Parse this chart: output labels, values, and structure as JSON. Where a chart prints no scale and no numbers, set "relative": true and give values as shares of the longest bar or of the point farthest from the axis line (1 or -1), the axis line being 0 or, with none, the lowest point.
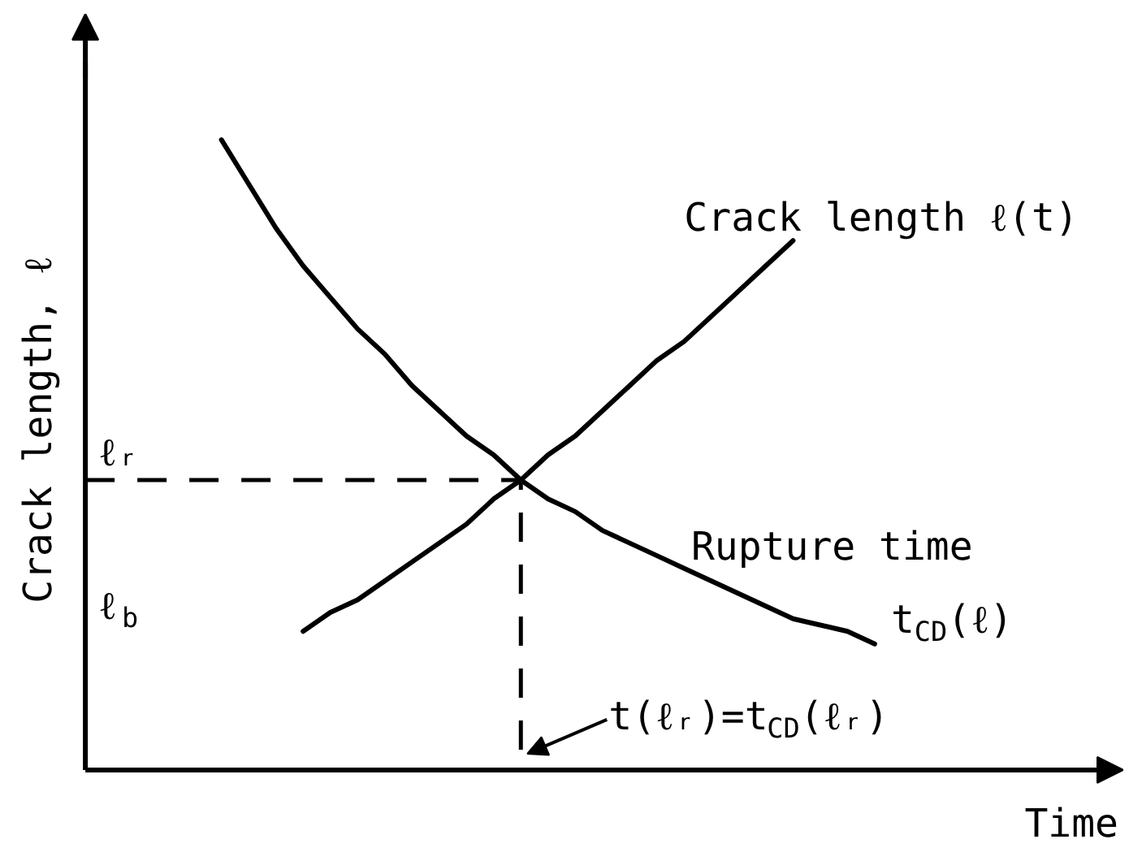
{
  "chart_data": {
    "type": "line",
    "relative": true,
    "xlabel": "Time",
    "ylabel": "Crack length, ℓ",
    "categories": [
      null,
      null,
      null,
      null,
      null,
      null,
      null,
      null,
      null,
      null,
      null,
      null,
      null,
      null,
      null,
      null,
      null,
      null,
      null,
      null,
      null,
      null,
      null,
      null,
      null,
      null,
      null,
      null,
      null,
      null
    ],
    "series": [
      {
        "name": "Crack length ℓ(t)",
        "color": "#000000",
        "values": [
          null,
          null,
          null,
          null,
          null,
          null,
          null,
          null,
          0.22,
          0.25,
          0.27,
          0.3,
          0.33,
          0.36,
          0.39,
          0.43,
          0.46,
          0.5,
          0.53,
          0.57,
          0.61,
          0.65,
          0.68,
          0.72,
          0.76,
          0.8,
          0.84,
          null,
          null,
          null
        ]
      },
      {
        "name": "Rupture time t$_{CD}$(ℓ)",
        "color": "#000000",
        "values": [
          null,
          null,
          null,
          null,
          null,
          1.0,
          0.93,
          0.86,
          0.8,
          0.75,
          0.7,
          0.66,
          0.61,
          0.57,
          0.53,
          0.5,
          0.46,
          0.43,
          0.41,
          0.38,
          0.36,
          0.34,
          0.32,
          0.3,
          0.28,
          0.26,
          0.24,
          0.23,
          0.22,
          0.2
        ]
      },
      {
        "type": "step",
        "line_style": "dashed",
        "color": "#000000",
        "values": [
          0.46,
          0.46,
          0.46,
          0.46,
          0.46,
          0.46,
          0.46,
          0.46,
          0.46,
          0.46,
          0.46,
          0.46,
          0.46,
          0.46,
          0.46,
          0.46,
          0,
          null,
          null,
          null,
          null,
          null,
          null,
          null,
          null,
          null,
          null,
          null,
          null,
          null
        ]
      }
    ],
    "annotations": [
      {
        "text": "ℓᵣ",
        "y": 0.46
      },
      "ℓ$_{b}$",
      "t(ℓᵣ)=t$_{CD}$(ℓᵣ)"
    ]
  }
}
